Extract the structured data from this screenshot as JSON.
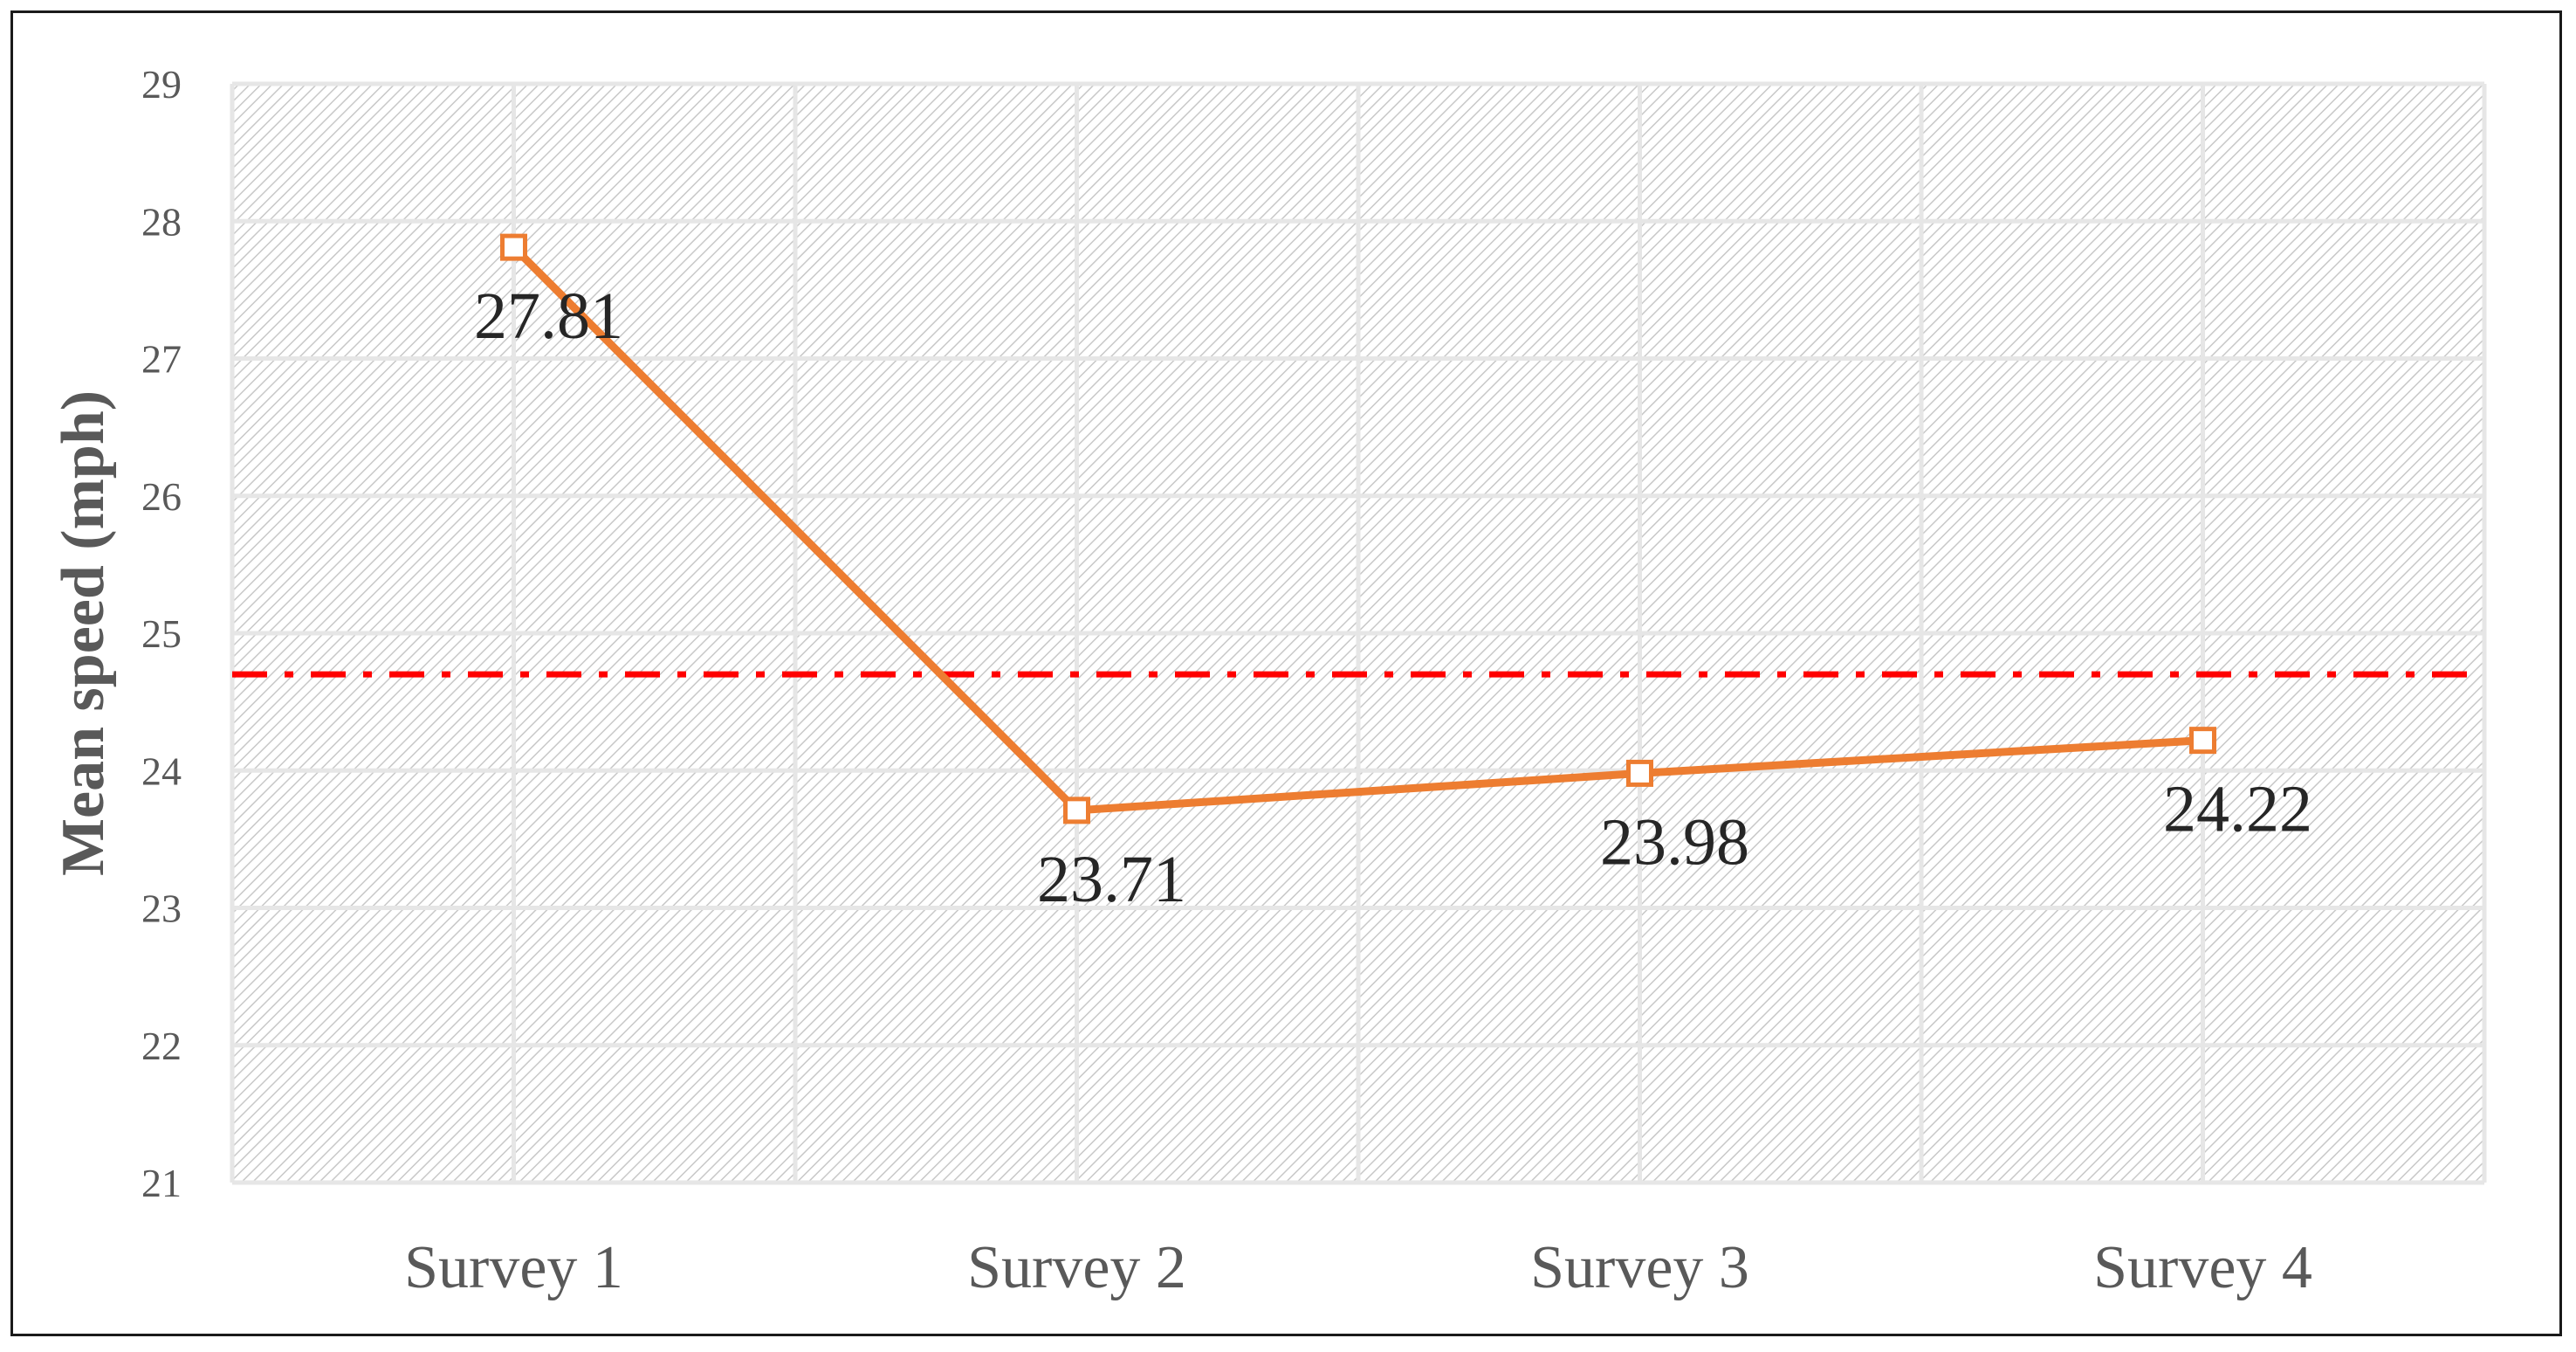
{
  "chart_data": {
    "type": "line",
    "title": "",
    "xlabel": "",
    "ylabel": "Mean speed (mph)",
    "ylim": [
      21,
      29
    ],
    "yticks": [
      21,
      22,
      23,
      24,
      25,
      26,
      27,
      28,
      29
    ],
    "categories": [
      "Survey 1",
      "Survey 2",
      "Survey 3",
      "Survey 4"
    ],
    "series": [
      {
        "values": [
          27.81,
          23.71,
          23.98,
          24.22
        ],
        "data_labels": [
          "27.81",
          "23.71",
          "23.98",
          "24.22"
        ],
        "color": "#ED7D31",
        "marker": "square-open"
      }
    ],
    "reference_line": {
      "value": 24.7,
      "color": "#FF0000",
      "style": "dash-dot"
    },
    "grid": true,
    "plot_background": "diagonal-hatch",
    "legend": "none"
  }
}
